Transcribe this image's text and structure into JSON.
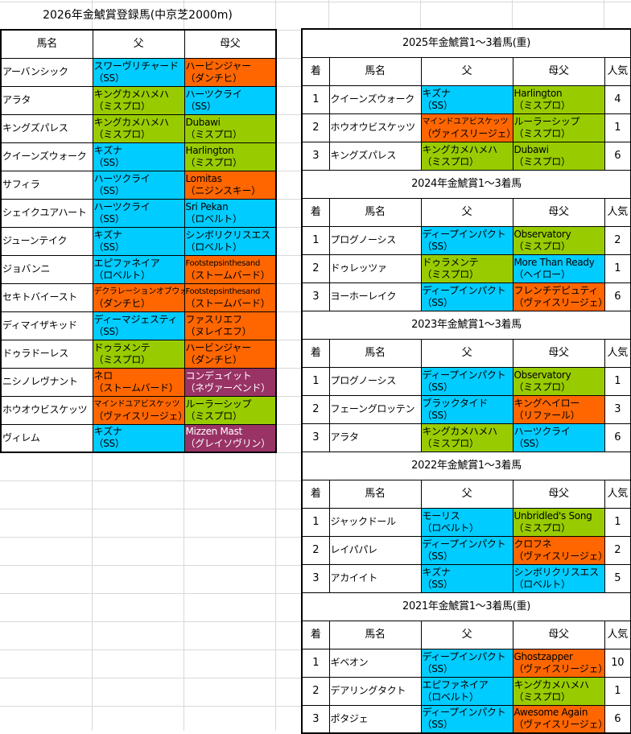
{
  "colors": {
    "ss": "#00ccff",
    "mispro": "#99cc00",
    "orange": "#ff6600",
    "purple": "#993366"
  },
  "sheet_title": "2026年金鯱賞登録馬(中京芝2000m)",
  "registered": {
    "headers": [
      "馬名",
      "父",
      "母父"
    ],
    "rows": [
      {
        "name": "アーバンシック",
        "sire": [
          "スワーヴリチャード",
          "（SS）"
        ],
        "sire_color": "ss",
        "bms": [
          "ハービンジャー",
          "（ダンチヒ）"
        ],
        "bms_color": "orange"
      },
      {
        "name": "アラタ",
        "sire": [
          "キングカメハメハ",
          "（ミスプロ）"
        ],
        "sire_color": "mispro",
        "bms": [
          "ハーツクライ",
          "（SS）"
        ],
        "bms_color": "ss"
      },
      {
        "name": "キングズパレス",
        "sire": [
          "キングカメハメハ",
          "（ミスプロ）"
        ],
        "sire_color": "mispro",
        "bms": [
          "Dubawi",
          "（ミスプロ）"
        ],
        "bms_color": "mispro"
      },
      {
        "name": "クイーンズウォーク",
        "sire": [
          "キズナ",
          "（SS）"
        ],
        "sire_color": "ss",
        "bms": [
          "Harlington",
          "（ミスプロ）"
        ],
        "bms_color": "mispro"
      },
      {
        "name": "サフィラ",
        "sire": [
          "ハーツクライ",
          "（SS）"
        ],
        "sire_color": "ss",
        "bms": [
          "Lomitas",
          "（ニジンスキー）"
        ],
        "bms_color": "orange"
      },
      {
        "name": "シェイクユアハート",
        "sire": [
          "ハーツクライ",
          "（SS）"
        ],
        "sire_color": "ss",
        "bms": [
          "Sri Pekan",
          "（ロベルト）"
        ],
        "bms_color": "ss"
      },
      {
        "name": "ジューンテイク",
        "sire": [
          "キズナ",
          "（SS）"
        ],
        "sire_color": "ss",
        "bms": [
          "シンボリクリスエス",
          "（ロベルト）"
        ],
        "bms_color": "ss"
      },
      {
        "name": "ジョバンニ",
        "sire": [
          "エピファネイア",
          "（ロベルト）"
        ],
        "sire_color": "ss",
        "bms": [
          "Footstepsinthesand",
          "（ストームバード）"
        ],
        "bms_color": "orange",
        "bms_small": true
      },
      {
        "name": "セキトバイースト",
        "sire": [
          "デクラレーションオブウォー",
          "（ダンチヒ）"
        ],
        "sire_color": "orange",
        "sire_small": true,
        "bms": [
          "Footstepsinthesand",
          "（ストームバード）"
        ],
        "bms_color": "orange",
        "bms_small": true
      },
      {
        "name": "ディマイザキッド",
        "sire": [
          "ディーマジェスティ",
          "（SS）"
        ],
        "sire_color": "ss",
        "bms": [
          "ファスリエフ",
          "（ヌレイエフ）"
        ],
        "bms_color": "orange"
      },
      {
        "name": "ドゥラドーレス",
        "sire": [
          "ドゥラメンテ",
          "（ミスプロ）"
        ],
        "sire_color": "mispro",
        "bms": [
          "ハービンジャー",
          "（ダンチヒ）"
        ],
        "bms_color": "orange"
      },
      {
        "name": "ニシノレヴナント",
        "sire": [
          "ネロ",
          "（ストームバード）"
        ],
        "sire_color": "orange",
        "bms": [
          "コンデュイット",
          "（ネヴァーベンド）"
        ],
        "bms_color": "purple"
      },
      {
        "name": "ホウオウビスケッツ",
        "sire": [
          "マインドユアビスケッツ",
          "（ヴァイスリージェ）"
        ],
        "sire_color": "orange",
        "sire_small": true,
        "bms": [
          "ルーラーシップ",
          "（ミスプロ）"
        ],
        "bms_color": "mispro"
      },
      {
        "name": "ヴィレム",
        "sire": [
          "キズナ",
          "（SS）"
        ],
        "sire_color": "ss",
        "bms": [
          "Mizzen Mast",
          "（グレイソヴリン）"
        ],
        "bms_color": "purple"
      }
    ]
  },
  "results_headers": [
    "着",
    "馬名",
    "父",
    "母父",
    "人気"
  ],
  "results": [
    {
      "title": "2025年金鯱賞1～3着馬(重)",
      "rows": [
        {
          "rank": "1",
          "name": "クイーンズウォーク",
          "sire": [
            "キズナ",
            "（SS）"
          ],
          "sire_color": "ss",
          "bms": [
            "Harlington",
            "（ミスプロ）"
          ],
          "bms_color": "mispro",
          "pop": "4"
        },
        {
          "rank": "2",
          "name": "ホウオウビスケッツ",
          "sire": [
            "マインドユアビスケッツ",
            "（ヴァイスリージェ）"
          ],
          "sire_color": "orange",
          "sire_small": true,
          "bms": [
            "ルーラーシップ",
            "（ミスプロ）"
          ],
          "bms_color": "mispro",
          "pop": "1"
        },
        {
          "rank": "3",
          "name": "キングズパレス",
          "sire": [
            "キングカメハメハ",
            "（ミスプロ）"
          ],
          "sire_color": "mispro",
          "bms": [
            "Dubawi",
            "（ミスプロ）"
          ],
          "bms_color": "mispro",
          "pop": "6"
        }
      ]
    },
    {
      "title": "2024年金鯱賞1～3着馬",
      "rows": [
        {
          "rank": "1",
          "name": "プログノーシス",
          "sire": [
            "ディープインパクト",
            "（SS）"
          ],
          "sire_color": "ss",
          "bms": [
            "Observatory",
            "（ミスプロ）"
          ],
          "bms_color": "mispro",
          "pop": "2"
        },
        {
          "rank": "2",
          "name": "ドゥレッツァ",
          "sire": [
            "ドゥラメンテ",
            "（ミスプロ）"
          ],
          "sire_color": "mispro",
          "bms": [
            "More Than Ready",
            "（ヘイロー）"
          ],
          "bms_color": "ss",
          "pop": "1"
        },
        {
          "rank": "3",
          "name": "ヨーホーレイク",
          "sire": [
            "ディープインパクト",
            "（SS）"
          ],
          "sire_color": "ss",
          "bms": [
            "フレンチデピュティ",
            "（ヴァイスリージェ）"
          ],
          "bms_color": "orange",
          "pop": "6"
        }
      ]
    },
    {
      "title": "2023年金鯱賞1～3着馬",
      "rows": [
        {
          "rank": "1",
          "name": "プログノーシス",
          "sire": [
            "ディープインパクト",
            "（SS）"
          ],
          "sire_color": "ss",
          "bms": [
            "Observatory",
            "（ミスプロ）"
          ],
          "bms_color": "mispro",
          "pop": "1"
        },
        {
          "rank": "2",
          "name": "フェーングロッテン",
          "sire": [
            "ブラックタイド",
            "（SS）"
          ],
          "sire_color": "ss",
          "bms": [
            "キングヘイロー",
            "（リファール）"
          ],
          "bms_color": "orange",
          "pop": "3"
        },
        {
          "rank": "3",
          "name": "アラタ",
          "sire": [
            "キングカメハメハ",
            "（ミスプロ）"
          ],
          "sire_color": "mispro",
          "bms": [
            "ハーツクライ",
            "（SS）"
          ],
          "bms_color": "ss",
          "pop": "6"
        }
      ]
    },
    {
      "title": "2022年金鯱賞1～3着馬",
      "rows": [
        {
          "rank": "1",
          "name": "ジャックドール",
          "sire": [
            "モーリス",
            "（ロベルト）"
          ],
          "sire_color": "ss",
          "bms": [
            "Unbridled's Song",
            "（ミスプロ）"
          ],
          "bms_color": "mispro",
          "pop": "1"
        },
        {
          "rank": "2",
          "name": "レイパパレ",
          "sire": [
            "ディープインパクト",
            "（SS）"
          ],
          "sire_color": "ss",
          "bms": [
            "クロフネ",
            "（ヴァイスリージェ）"
          ],
          "bms_color": "orange",
          "pop": "2"
        },
        {
          "rank": "3",
          "name": "アカイイト",
          "sire": [
            "キズナ",
            "（SS）"
          ],
          "sire_color": "ss",
          "bms": [
            "シンボリクリスエス",
            "（ロベルト）"
          ],
          "bms_color": "ss",
          "pop": "5"
        }
      ]
    },
    {
      "title": "2021年金鯱賞1～3着馬(重)",
      "rows": [
        {
          "rank": "1",
          "name": "ギベオン",
          "sire": [
            "ディープインパクト",
            "（SS）"
          ],
          "sire_color": "ss",
          "bms": [
            "Ghostzapper",
            "（ヴァイスリージェ）"
          ],
          "bms_color": "orange",
          "pop": "10"
        },
        {
          "rank": "2",
          "name": "デアリングタクト",
          "sire": [
            "エピファネイア",
            "（ロベルト）"
          ],
          "sire_color": "ss",
          "bms": [
            "キングカメハメハ",
            "（ミスプロ）"
          ],
          "bms_color": "mispro",
          "pop": "1"
        },
        {
          "rank": "3",
          "name": "ポタジェ",
          "sire": [
            "ディープインパクト",
            "（SS）"
          ],
          "sire_color": "ss",
          "bms": [
            "Awesome Again",
            "（ヴァイスリージェ）"
          ],
          "bms_color": "orange",
          "pop": "6"
        }
      ]
    }
  ]
}
